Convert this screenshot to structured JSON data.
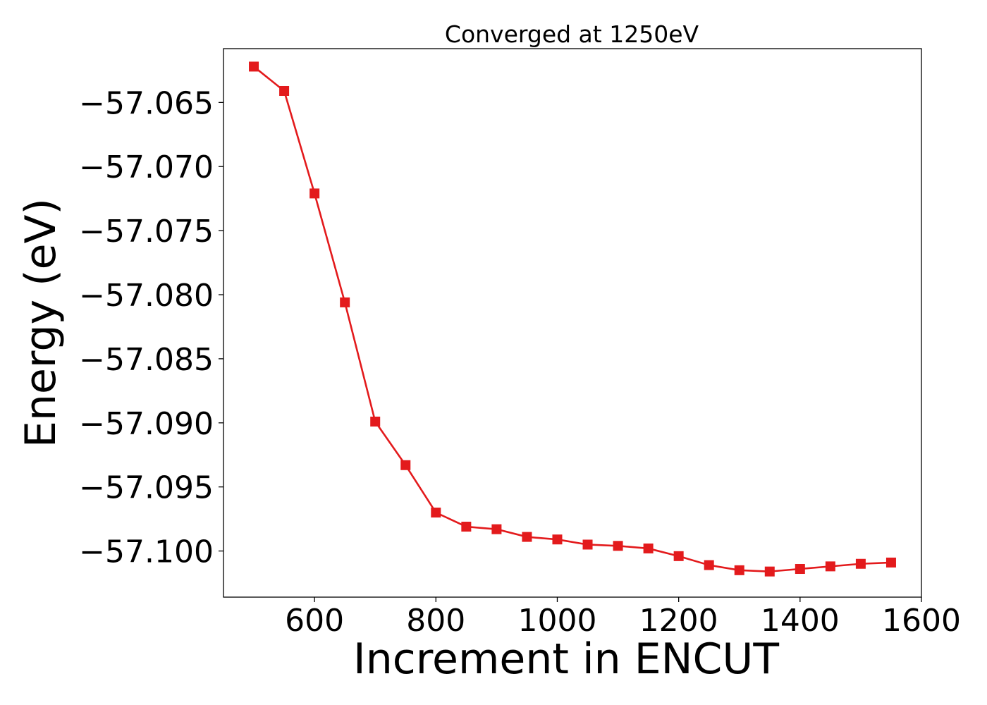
{
  "chart_data": {
    "type": "line",
    "title": "Converged at 1250eV",
    "xlabel": "Increment in ENCUT",
    "ylabel": "Energy (eV)",
    "xlim": [
      450,
      1600
    ],
    "ylim": [
      -57.1036,
      -57.0608
    ],
    "x_ticks": [
      600,
      800,
      1000,
      1200,
      1400,
      1600
    ],
    "x_tick_labels": [
      "600",
      "800",
      "1000",
      "1200",
      "1400",
      "1600"
    ],
    "y_ticks": [
      -57.065,
      -57.07,
      -57.075,
      -57.08,
      -57.085,
      -57.09,
      -57.095,
      -57.1
    ],
    "y_tick_labels": [
      "−57.065",
      "−57.070",
      "−57.075",
      "−57.080",
      "−57.085",
      "−57.090",
      "−57.095",
      "−57.100"
    ],
    "grid": false,
    "marker": "square",
    "series": [
      {
        "color": "#e31a1c",
        "x": [
          500,
          550,
          600,
          650,
          700,
          750,
          800,
          850,
          900,
          950,
          1000,
          1050,
          1100,
          1150,
          1200,
          1250,
          1300,
          1350,
          1400,
          1450,
          1500,
          1550
        ],
        "y": [
          -57.0622,
          -57.0641,
          -57.0721,
          -57.0806,
          -57.0899,
          -57.0933,
          -57.097,
          -57.0981,
          -57.0983,
          -57.0989,
          -57.0991,
          -57.0995,
          -57.0996,
          -57.0998,
          -57.1004,
          -57.1011,
          -57.1015,
          -57.1016,
          -57.1014,
          -57.1012,
          -57.101,
          -57.1009
        ]
      }
    ]
  }
}
